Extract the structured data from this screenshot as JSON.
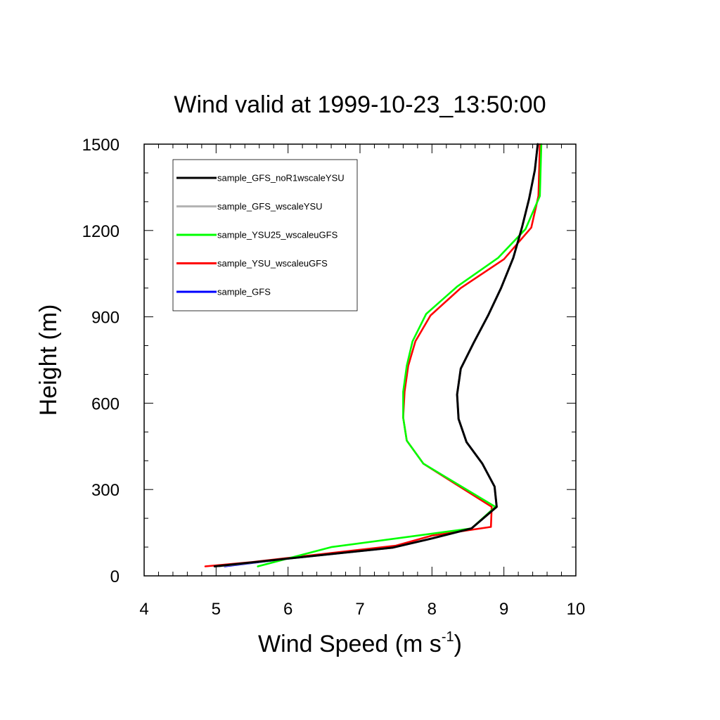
{
  "chart_data": {
    "type": "line",
    "title": "Wind valid at 1999-10-23_13:50:00",
    "xlabel_base": "Wind Speed (m s",
    "xlabel_sup": "-1",
    "xlabel_end": ")",
    "ylabel": "Height (m)",
    "xlim": [
      4,
      10
    ],
    "ylim": [
      0,
      1500
    ],
    "xticks": [
      "4",
      "5",
      "6",
      "7",
      "8",
      "9",
      "10"
    ],
    "yticks": [
      "0",
      "300",
      "600",
      "900",
      "1200",
      "1500"
    ],
    "legend_position": "top-left",
    "series": [
      {
        "name": "sample_GFS_noR1wscaleYSU",
        "color": "#000000",
        "points": [
          [
            4.98,
            33
          ],
          [
            6.0,
            60
          ],
          [
            7.45,
            98
          ],
          [
            8.0,
            130
          ],
          [
            8.55,
            165
          ],
          [
            8.9,
            240
          ],
          [
            8.87,
            310
          ],
          [
            8.7,
            390
          ],
          [
            8.48,
            465
          ],
          [
            8.37,
            545
          ],
          [
            8.35,
            630
          ],
          [
            8.4,
            720
          ],
          [
            8.58,
            810
          ],
          [
            8.78,
            905
          ],
          [
            8.96,
            1000
          ],
          [
            9.13,
            1105
          ],
          [
            9.25,
            1210
          ],
          [
            9.35,
            1310
          ],
          [
            9.43,
            1410
          ],
          [
            9.47,
            1500
          ]
        ]
      },
      {
        "name": "sample_GFS_wscaleYSU",
        "color": "#b4b4b4",
        "points": [
          [
            5.05,
            33
          ],
          [
            6.0,
            60
          ],
          [
            7.45,
            98
          ],
          [
            8.0,
            130
          ],
          [
            8.55,
            165
          ],
          [
            8.9,
            240
          ],
          [
            8.87,
            310
          ],
          [
            8.7,
            390
          ],
          [
            8.48,
            465
          ],
          [
            8.37,
            545
          ],
          [
            8.35,
            630
          ],
          [
            8.4,
            720
          ],
          [
            8.58,
            810
          ],
          [
            8.78,
            905
          ],
          [
            8.96,
            1000
          ],
          [
            9.13,
            1105
          ],
          [
            9.25,
            1210
          ],
          [
            9.35,
            1310
          ],
          [
            9.43,
            1410
          ],
          [
            9.47,
            1500
          ]
        ]
      },
      {
        "name": "sample_YSU25_wscaleuGFS",
        "color": "#00ff00",
        "points": [
          [
            5.58,
            33
          ],
          [
            6.6,
            100
          ],
          [
            8.55,
            165
          ],
          [
            8.88,
            240
          ],
          [
            7.88,
            390
          ],
          [
            7.65,
            470
          ],
          [
            7.6,
            550
          ],
          [
            7.6,
            640
          ],
          [
            7.65,
            730
          ],
          [
            7.73,
            815
          ],
          [
            7.92,
            910
          ],
          [
            8.35,
            1005
          ],
          [
            8.92,
            1105
          ],
          [
            9.3,
            1205
          ],
          [
            9.5,
            1320
          ],
          [
            9.52,
            1500
          ]
        ]
      },
      {
        "name": "sample_YSU_wscaleuGFS",
        "color": "#ff0000",
        "points": [
          [
            4.85,
            33
          ],
          [
            5.5,
            48
          ],
          [
            7.5,
            105
          ],
          [
            8.0,
            140
          ],
          [
            8.82,
            170
          ],
          [
            8.83,
            240
          ],
          [
            7.88,
            390
          ],
          [
            7.65,
            470
          ],
          [
            7.6,
            550
          ],
          [
            7.62,
            640
          ],
          [
            7.67,
            730
          ],
          [
            7.77,
            815
          ],
          [
            7.98,
            905
          ],
          [
            8.4,
            1000
          ],
          [
            9.0,
            1100
          ],
          [
            9.38,
            1210
          ],
          [
            9.48,
            1320
          ],
          [
            9.5,
            1500
          ]
        ]
      },
      {
        "name": "sample_GFS",
        "color": "#0000ff",
        "points": [
          [
            5.12,
            33
          ],
          [
            6.0,
            60
          ],
          [
            7.45,
            98
          ],
          [
            8.0,
            130
          ],
          [
            8.55,
            165
          ],
          [
            8.9,
            240
          ],
          [
            8.87,
            310
          ],
          [
            8.7,
            390
          ],
          [
            8.48,
            465
          ],
          [
            8.37,
            545
          ],
          [
            8.35,
            630
          ],
          [
            8.4,
            720
          ],
          [
            8.58,
            810
          ],
          [
            8.78,
            905
          ],
          [
            8.96,
            1000
          ],
          [
            9.13,
            1105
          ],
          [
            9.25,
            1210
          ],
          [
            9.35,
            1310
          ],
          [
            9.43,
            1410
          ],
          [
            9.47,
            1500
          ]
        ]
      }
    ]
  }
}
